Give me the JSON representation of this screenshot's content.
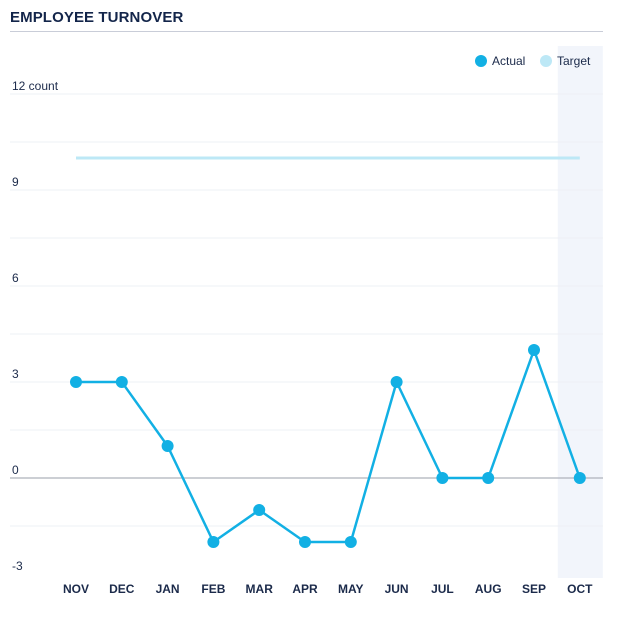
{
  "header": {
    "title": "EMPLOYEE TURNOVER"
  },
  "colors": {
    "actual": "#12b0e4",
    "target": "#bde8f6",
    "highlight_band": "#f2f5fb",
    "grid": "#eef0f4",
    "zero_line": "#aeb2bb"
  },
  "chart_data": {
    "type": "line",
    "title": "EMPLOYEE TURNOVER",
    "categories": [
      "NOV",
      "DEC",
      "JAN",
      "FEB",
      "MAR",
      "APR",
      "MAY",
      "JUN",
      "JUL",
      "AUG",
      "SEP",
      "OCT"
    ],
    "series": [
      {
        "name": "Actual",
        "values": [
          3,
          3,
          1,
          -2,
          -1,
          -2,
          -2,
          3,
          0,
          0,
          4,
          0
        ]
      },
      {
        "name": "Target",
        "values": [
          10,
          10,
          10,
          10,
          10,
          10,
          10,
          10,
          10,
          10,
          10,
          10
        ]
      }
    ],
    "y_ticks": [
      {
        "value": 12,
        "label": "12 count"
      },
      {
        "value": 9,
        "label": "9"
      },
      {
        "value": 6,
        "label": "6"
      },
      {
        "value": 3,
        "label": "3"
      },
      {
        "value": 0,
        "label": "0"
      },
      {
        "value": -3,
        "label": "-3"
      }
    ],
    "ylim": [
      -3,
      12
    ],
    "grid": true,
    "legend_position": "top-right",
    "highlighted_category": "OCT"
  }
}
